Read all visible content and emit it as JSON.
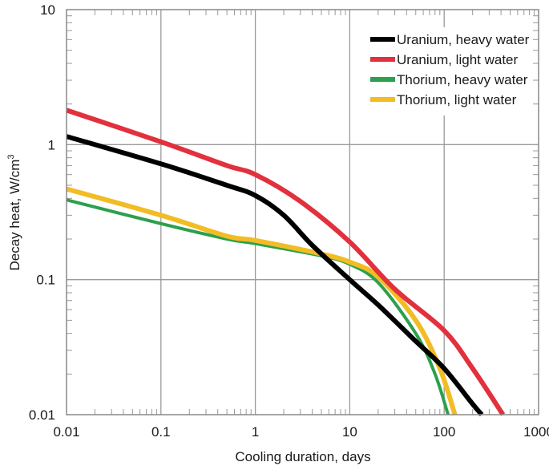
{
  "chart_data": {
    "type": "line",
    "xlabel": "Cooling duration, days",
    "ylabel": "Decay heat, W/cm",
    "ylabel_superscript": "3",
    "x_scale": "log",
    "y_scale": "log",
    "xlim": [
      0.01,
      1000
    ],
    "ylim": [
      0.01,
      10
    ],
    "x_ticks": [
      "0.01",
      "0.1",
      "1",
      "10",
      "100",
      "1000"
    ],
    "y_ticks": [
      "0.01",
      "0.1",
      "1",
      "10"
    ],
    "grid": true,
    "legend_position": "top-right",
    "series": [
      {
        "name": "Uranium, heavy water",
        "color": "#000000",
        "points": [
          [
            0.01,
            1.15
          ],
          [
            0.1,
            0.72
          ],
          [
            0.5,
            0.5
          ],
          [
            1,
            0.42
          ],
          [
            2,
            0.3
          ],
          [
            4,
            0.18
          ],
          [
            10,
            0.1
          ],
          [
            20,
            0.065
          ],
          [
            50,
            0.035
          ],
          [
            100,
            0.022
          ],
          [
            200,
            0.012
          ],
          [
            250,
            0.01
          ]
        ]
      },
      {
        "name": "Uranium, light water",
        "color": "#e2303d",
        "points": [
          [
            0.01,
            1.8
          ],
          [
            0.1,
            1.05
          ],
          [
            0.5,
            0.7
          ],
          [
            1,
            0.6
          ],
          [
            3,
            0.38
          ],
          [
            10,
            0.19
          ],
          [
            30,
            0.085
          ],
          [
            100,
            0.042
          ],
          [
            200,
            0.022
          ],
          [
            420,
            0.01
          ]
        ]
      },
      {
        "name": "Thorium, heavy water",
        "color": "#2ca04c",
        "points": [
          [
            0.01,
            0.39
          ],
          [
            0.1,
            0.26
          ],
          [
            0.5,
            0.2
          ],
          [
            1,
            0.185
          ],
          [
            5,
            0.15
          ],
          [
            10,
            0.13
          ],
          [
            20,
            0.095
          ],
          [
            50,
            0.04
          ],
          [
            80,
            0.02
          ],
          [
            110,
            0.01
          ]
        ]
      },
      {
        "name": "Thorium, light water",
        "color": "#f2bc25",
        "points": [
          [
            0.01,
            0.47
          ],
          [
            0.1,
            0.3
          ],
          [
            0.5,
            0.21
          ],
          [
            1,
            0.195
          ],
          [
            5,
            0.155
          ],
          [
            10,
            0.135
          ],
          [
            20,
            0.105
          ],
          [
            50,
            0.05
          ],
          [
            90,
            0.022
          ],
          [
            130,
            0.01
          ]
        ]
      }
    ]
  }
}
